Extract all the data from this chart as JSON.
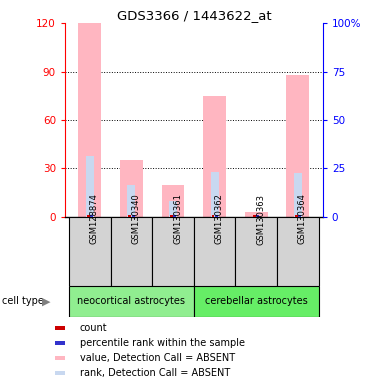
{
  "title": "GDS3366 / 1443622_at",
  "samples": [
    "GSM128874",
    "GSM130340",
    "GSM130361",
    "GSM130362",
    "GSM130363",
    "GSM130364"
  ],
  "groups": [
    {
      "name": "neocortical astrocytes",
      "indices": [
        0,
        1,
        2
      ],
      "color": "#90EE90"
    },
    {
      "name": "cerebellar astrocytes",
      "indices": [
        3,
        4,
        5
      ],
      "color": "#66EE66"
    }
  ],
  "value_absent": [
    120,
    35,
    20,
    75,
    3,
    88
  ],
  "rank_absent": [
    38,
    20,
    10,
    28,
    0,
    27
  ],
  "ylim_left": [
    0,
    120
  ],
  "ylim_right": [
    0,
    100
  ],
  "yticks_left": [
    0,
    30,
    60,
    90,
    120
  ],
  "yticks_right": [
    0,
    25,
    50,
    75,
    100
  ],
  "yticklabels_left": [
    "0",
    "30",
    "60",
    "90",
    "120"
  ],
  "yticklabels_right": [
    "0",
    "25",
    "50",
    "75",
    "100%"
  ],
  "color_value_absent": "#FFB6C1",
  "color_rank_absent": "#C8D8F0",
  "color_count": "#CC0000",
  "color_rank_present": "#3333CC",
  "legend_items": [
    {
      "label": "count",
      "color": "#CC0000"
    },
    {
      "label": "percentile rank within the sample",
      "color": "#3333CC"
    },
    {
      "label": "value, Detection Call = ABSENT",
      "color": "#FFB6C1"
    },
    {
      "label": "rank, Detection Call = ABSENT",
      "color": "#C8D8F0"
    }
  ]
}
